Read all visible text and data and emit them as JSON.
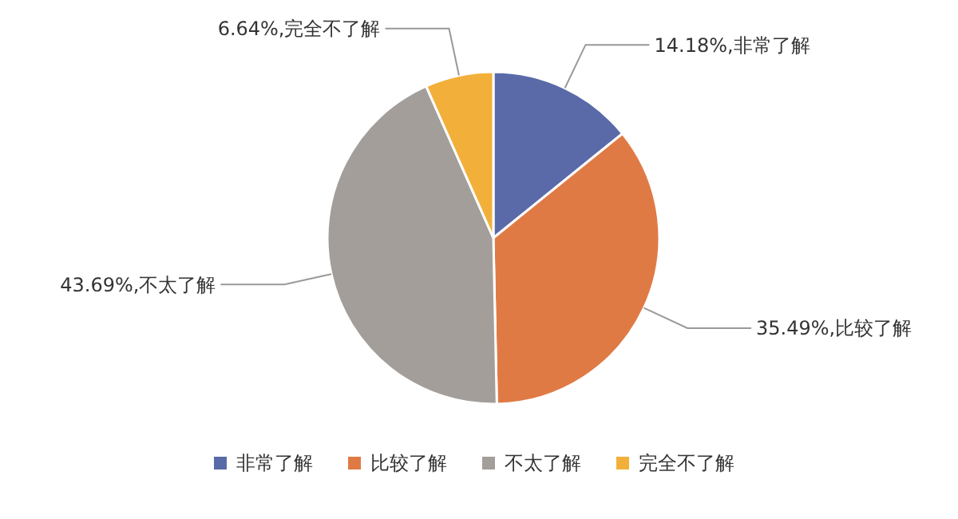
{
  "chart_data": {
    "type": "pie",
    "categories": [
      "非常了解",
      "比较了解",
      "不太了解",
      "完全不了解"
    ],
    "values": [
      14.18,
      35.49,
      43.69,
      6.64
    ],
    "colors": [
      "#5a6aa8",
      "#e07a45",
      "#a39e9a",
      "#f2b03a"
    ],
    "value_labels": [
      "14.18%,非常了解",
      "35.49%,比较了解",
      "43.69%,不太了解",
      "6.64%,完全不了解"
    ],
    "legend": "bottom"
  }
}
